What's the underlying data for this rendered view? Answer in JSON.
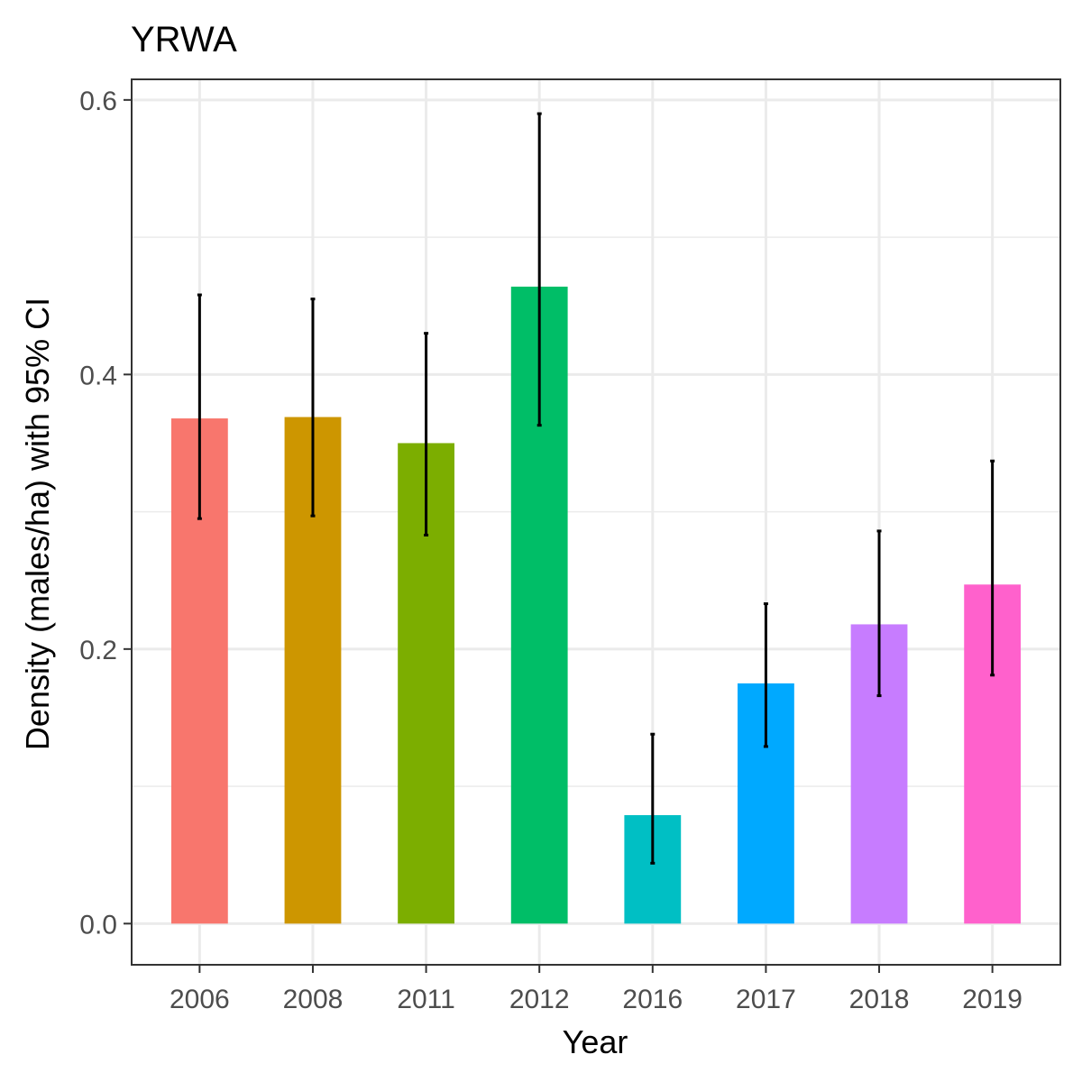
{
  "chart_data": {
    "type": "bar",
    "title": "YRWA",
    "xlabel": "Year",
    "ylabel": "Density (males/ha) with 95% CI",
    "categories": [
      "2006",
      "2008",
      "2011",
      "2012",
      "2016",
      "2017",
      "2018",
      "2019"
    ],
    "values": [
      0.368,
      0.369,
      0.35,
      0.464,
      0.079,
      0.175,
      0.218,
      0.247
    ],
    "ci_lower": [
      0.295,
      0.297,
      0.283,
      0.363,
      0.044,
      0.129,
      0.166,
      0.181
    ],
    "ci_upper": [
      0.458,
      0.455,
      0.43,
      0.59,
      0.138,
      0.233,
      0.286,
      0.337
    ],
    "colors": [
      "#F8766D",
      "#CD9600",
      "#7CAE00",
      "#00BE67",
      "#00BFC4",
      "#00A9FF",
      "#C77CFF",
      "#FF61CC"
    ],
    "ylim": [
      -0.03,
      0.615
    ],
    "yticks": [
      0.0,
      0.2,
      0.4,
      0.6
    ],
    "ytick_labels": [
      "0.0",
      "0.2",
      "0.4",
      "0.6"
    ],
    "grid": true,
    "legend": "none",
    "error_bar_color": "#000000",
    "panel_border_color": "#333333",
    "grid_color": "#ebebeb"
  }
}
